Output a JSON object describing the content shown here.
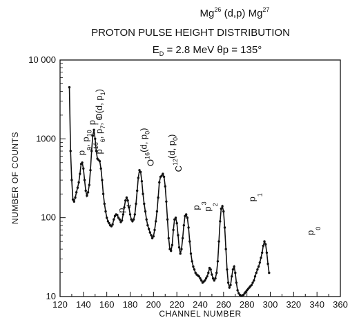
{
  "title": {
    "line1_main": "Mg",
    "line1_sup1": "26",
    "line1_mid": " (d,p) Mg",
    "line1_sup2": "27",
    "line2": "PROTON PULSE HEIGHT DISTRIBUTION",
    "line3": "E",
    "line3_sub": "D",
    "line3_rest": " = 2.8 MeV  θp = 135°"
  },
  "chart_data": {
    "type": "scatter",
    "title": "Mg26 (d,p) Mg27 — PROTON PULSE HEIGHT DISTRIBUTION",
    "xlabel": "CHANNEL NUMBER",
    "ylabel": "NUMBER OF COUNTS",
    "xlim": [
      120,
      360
    ],
    "ylim": [
      10,
      10000
    ],
    "yscale": "log",
    "xticks": [
      "120",
      "140",
      "160",
      "180",
      "200",
      "220",
      "240",
      "260",
      "280",
      "300",
      "320",
      "340",
      "360"
    ],
    "yticks": [
      "10",
      "100",
      "1000",
      "10 000"
    ],
    "ytick_values": [
      10,
      100,
      1000,
      10000
    ],
    "series": [
      {
        "points": [
          [
            128,
            4500
          ],
          [
            129,
            700
          ],
          [
            130,
            300
          ],
          [
            131,
            170
          ],
          [
            132,
            160
          ],
          [
            133,
            180
          ],
          [
            134,
            210
          ],
          [
            135,
            240
          ],
          [
            136,
            280
          ],
          [
            137,
            360
          ],
          [
            138,
            480
          ],
          [
            139,
            500
          ],
          [
            140,
            420
          ],
          [
            141,
            300
          ],
          [
            142,
            220
          ],
          [
            143,
            190
          ],
          [
            144,
            210
          ],
          [
            145,
            260
          ],
          [
            146,
            400
          ],
          [
            147,
            700
          ],
          [
            148,
            1100
          ],
          [
            149,
            1300
          ],
          [
            150,
            1000
          ],
          [
            151,
            700
          ],
          [
            152,
            560
          ],
          [
            153,
            540
          ],
          [
            154,
            520
          ],
          [
            155,
            420
          ],
          [
            156,
            300
          ],
          [
            157,
            200
          ],
          [
            158,
            150
          ],
          [
            159,
            120
          ],
          [
            160,
            100
          ],
          [
            161,
            90
          ],
          [
            162,
            85
          ],
          [
            163,
            80
          ],
          [
            164,
            78
          ],
          [
            165,
            82
          ],
          [
            166,
            95
          ],
          [
            167,
            105
          ],
          [
            168,
            110
          ],
          [
            169,
            108
          ],
          [
            170,
            100
          ],
          [
            171,
            95
          ],
          [
            172,
            88
          ],
          [
            173,
            92
          ],
          [
            174,
            110
          ],
          [
            175,
            135
          ],
          [
            176,
            165
          ],
          [
            177,
            180
          ],
          [
            178,
            165
          ],
          [
            179,
            135
          ],
          [
            180,
            110
          ],
          [
            181,
            95
          ],
          [
            182,
            90
          ],
          [
            183,
            95
          ],
          [
            184,
            110
          ],
          [
            185,
            150
          ],
          [
            186,
            220
          ],
          [
            187,
            320
          ],
          [
            188,
            400
          ],
          [
            189,
            380
          ],
          [
            190,
            290
          ],
          [
            191,
            200
          ],
          [
            192,
            150
          ],
          [
            193,
            120
          ],
          [
            194,
            95
          ],
          [
            195,
            80
          ],
          [
            196,
            72
          ],
          [
            197,
            65
          ],
          [
            198,
            60
          ],
          [
            199,
            55
          ],
          [
            200,
            58
          ],
          [
            201,
            70
          ],
          [
            202,
            90
          ],
          [
            203,
            120
          ],
          [
            204,
            180
          ],
          [
            205,
            280
          ],
          [
            206,
            330
          ],
          [
            207,
            340
          ],
          [
            208,
            360
          ],
          [
            209,
            330
          ],
          [
            210,
            250
          ],
          [
            211,
            160
          ],
          [
            212,
            95
          ],
          [
            213,
            55
          ],
          [
            214,
            40
          ],
          [
            215,
            38
          ],
          [
            216,
            45
          ],
          [
            217,
            70
          ],
          [
            218,
            95
          ],
          [
            219,
            100
          ],
          [
            220,
            85
          ],
          [
            221,
            60
          ],
          [
            222,
            42
          ],
          [
            223,
            35
          ],
          [
            224,
            40
          ],
          [
            225,
            55
          ],
          [
            226,
            80
          ],
          [
            227,
            105
          ],
          [
            228,
            110
          ],
          [
            229,
            100
          ],
          [
            230,
            75
          ],
          [
            231,
            50
          ],
          [
            232,
            35
          ],
          [
            233,
            28
          ],
          [
            234,
            24
          ],
          [
            235,
            22
          ],
          [
            236,
            20
          ],
          [
            237,
            19
          ],
          [
            238,
            18.5
          ],
          [
            239,
            18
          ],
          [
            240,
            17
          ],
          [
            241,
            16
          ],
          [
            242,
            15
          ],
          [
            243,
            15.5
          ],
          [
            244,
            16
          ],
          [
            245,
            17
          ],
          [
            246,
            18
          ],
          [
            247,
            20
          ],
          [
            248,
            23
          ],
          [
            249,
            22
          ],
          [
            250,
            19
          ],
          [
            251,
            17
          ],
          [
            252,
            16
          ],
          [
            253,
            17
          ],
          [
            254,
            20
          ],
          [
            255,
            28
          ],
          [
            256,
            50
          ],
          [
            257,
            90
          ],
          [
            258,
            130
          ],
          [
            259,
            140
          ],
          [
            260,
            120
          ],
          [
            261,
            75
          ],
          [
            262,
            40
          ],
          [
            263,
            22
          ],
          [
            264,
            15
          ],
          [
            265,
            13
          ],
          [
            266,
            14
          ],
          [
            267,
            18
          ],
          [
            268,
            22
          ],
          [
            269,
            24
          ],
          [
            270,
            20
          ],
          [
            271,
            15
          ],
          [
            272,
            12
          ],
          [
            273,
            11
          ],
          [
            274,
            10.5
          ],
          [
            275,
            10.2
          ],
          [
            276,
            10.3
          ],
          [
            277,
            10.5
          ],
          [
            278,
            11
          ],
          [
            279,
            11.5
          ],
          [
            280,
            12
          ],
          [
            281,
            12.5
          ],
          [
            282,
            13
          ],
          [
            283,
            13.5
          ],
          [
            284,
            14
          ],
          [
            285,
            15
          ],
          [
            286,
            16
          ],
          [
            287,
            18
          ],
          [
            288,
            20
          ],
          [
            289,
            22
          ],
          [
            290,
            24
          ],
          [
            291,
            27
          ],
          [
            292,
            31
          ],
          [
            293,
            36
          ],
          [
            294,
            44
          ],
          [
            295,
            50
          ],
          [
            296,
            46
          ],
          [
            297,
            36
          ],
          [
            298,
            26
          ],
          [
            299,
            20
          ]
        ]
      }
    ],
    "peak_labels": [
      {
        "x": 141,
        "y": 620,
        "main": "p",
        "sub": "9",
        "rest": ", p",
        "sub2": "10"
      },
      {
        "x": 150,
        "y": 1500,
        "main": "p",
        "sub": "8"
      },
      {
        "x": 156,
        "y": 640,
        "main": "p",
        "sub": "6",
        "rest": ", p",
        "sub2": "7",
        "rest2": "; O",
        "sup": "16",
        "rest3": "(d, p",
        "sub3": "1",
        "rest4": ")"
      },
      {
        "x": 175,
        "y": 115,
        "main": "p",
        "sub": "4"
      },
      {
        "x": 200,
        "y": 450,
        "main": "O",
        "sup": "16",
        "rest": "(d, p",
        "sub2": "0",
        "rest2": ")"
      },
      {
        "x": 224,
        "y": 380,
        "main": "C",
        "sup": "12",
        "rest": "(d, p",
        "sub2": "0",
        "rest2": ")"
      },
      {
        "x": 239,
        "y": 125,
        "main": "p",
        "sub": "3"
      },
      {
        "x": 249,
        "y": 120,
        "main": "p",
        "sub": "2"
      },
      {
        "x": 287,
        "y": 160,
        "main": "p",
        "sub": "1"
      },
      {
        "x": 337,
        "y": 60,
        "main": "p",
        "sub": "0"
      }
    ]
  }
}
